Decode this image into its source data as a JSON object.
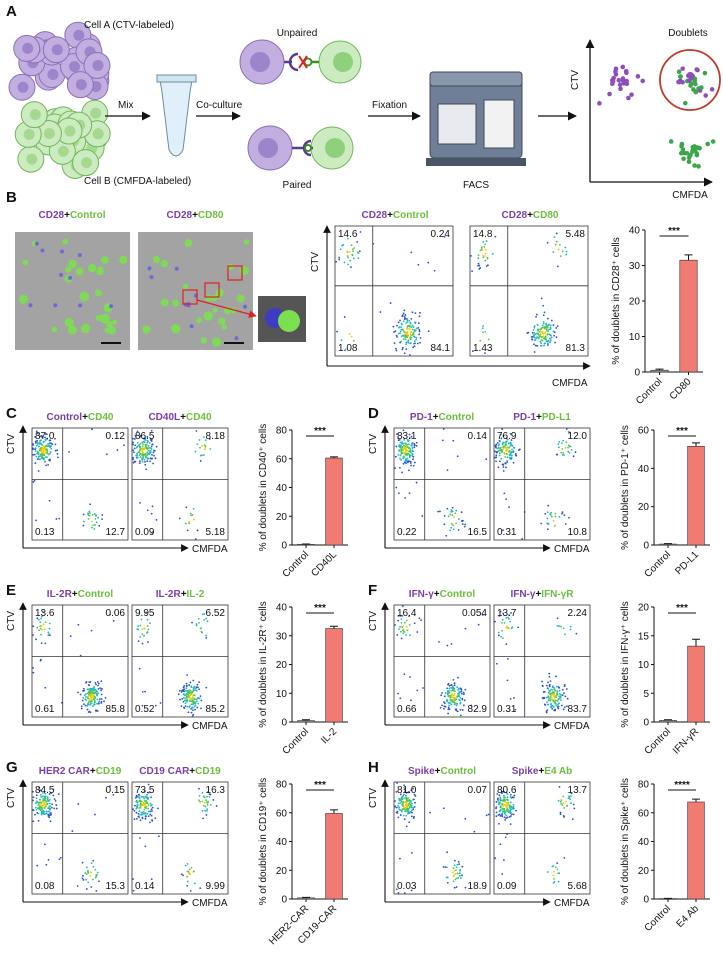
{
  "title_colors": [
    "#7b3fa8",
    "#111111",
    "#6cbf3c"
  ],
  "bar_colors": [
    "#9e9e9e",
    "#f07b72"
  ],
  "panel_a": {
    "label": "A",
    "cell_a": "Cell A (CTV-labeled)",
    "cell_b": "Cell B (CMFDA-labeled)",
    "mix": "Mix",
    "coculture": "Co-culture",
    "unpaired": "Unpaired",
    "paired": "Paired",
    "fixation": "Fixation",
    "facs": "FACS",
    "doublets": "Doublets",
    "y_axis": "CTV",
    "x_axis": "CMFDA"
  },
  "panel_b": {
    "label": "B",
    "micrographs": [
      [
        "CD28",
        "+",
        "Control"
      ],
      [
        "CD28",
        "+",
        "CD80"
      ]
    ],
    "flow": [
      {
        "title": [
          "CD28",
          "+",
          "Control"
        ],
        "quadrants": [
          "14.6",
          "0.24",
          "1.08",
          "84.1"
        ]
      },
      {
        "title": [
          "CD28",
          "+",
          "CD80"
        ],
        "quadrants": [
          "14.8",
          "5.48",
          "1.43",
          "81.3"
        ]
      }
    ],
    "y_axis": "CTV",
    "x_axis": "CMFDA",
    "bar": {
      "type": "bar",
      "ylabel": "% of doublets in CD28⁺ cells",
      "categories": [
        "Control",
        "CD80"
      ],
      "values": [
        0.5,
        31.5
      ],
      "errors": [
        0.3,
        1.5
      ],
      "ylim": [
        0,
        40
      ],
      "yticks": [
        0,
        10,
        20,
        30,
        40
      ],
      "significance": "***"
    }
  },
  "panel_c": {
    "label": "C",
    "flow": [
      {
        "title": [
          "Control",
          "+",
          "CD40"
        ],
        "quadrants": [
          "87.0",
          "0.12",
          "0.13",
          "12.7"
        ]
      },
      {
        "title": [
          "CD40L",
          "+",
          "CD40"
        ],
        "quadrants": [
          "86.5",
          "8.18",
          "0.09",
          "5.18"
        ]
      }
    ],
    "y_axis": "CTV",
    "x_axis": "CMFDA",
    "bar": {
      "type": "bar",
      "ylabel": "% of doublets in CD40⁺ cells",
      "categories": [
        "Control",
        "CD40L"
      ],
      "values": [
        0.5,
        60.5
      ],
      "errors": [
        0.2,
        0.8
      ],
      "ylim": [
        0,
        80
      ],
      "yticks": [
        0,
        20,
        40,
        60,
        80
      ],
      "significance": "***"
    }
  },
  "panel_d": {
    "label": "D",
    "flow": [
      {
        "title": [
          "PD-1",
          "+",
          "Control"
        ],
        "quadrants": [
          "83.1",
          "0.14",
          "0.22",
          "16.5"
        ]
      },
      {
        "title": [
          "PD-1",
          "+",
          "PD-L1"
        ],
        "quadrants": [
          "76.9",
          "12.0",
          "0.31",
          "10.8"
        ]
      }
    ],
    "y_axis": "CTV",
    "x_axis": "CMFDA",
    "bar": {
      "type": "bar",
      "ylabel": "% of doublets in PD-1⁺ cells",
      "categories": [
        "Control",
        "PD-L1"
      ],
      "values": [
        0.5,
        51.5
      ],
      "errors": [
        0.2,
        1.8
      ],
      "ylim": [
        0,
        60
      ],
      "yticks": [
        0,
        20,
        40,
        60
      ],
      "significance": "***"
    }
  },
  "panel_e": {
    "label": "E",
    "flow": [
      {
        "title": [
          "IL-2R",
          "+",
          "Control"
        ],
        "quadrants": [
          "13.6",
          "0.06",
          "0.61",
          "85.8"
        ]
      },
      {
        "title": [
          "IL-2R",
          "+",
          "IL-2"
        ],
        "quadrants": [
          "9.95",
          "6.52",
          "0.52",
          "85.2"
        ]
      }
    ],
    "y_axis": "CTV",
    "x_axis": "CMFDA",
    "bar": {
      "type": "bar",
      "ylabel": "% of doublets in IL-2R⁺ cells",
      "categories": [
        "Control",
        "IL-2"
      ],
      "values": [
        0.5,
        32.5
      ],
      "errors": [
        0.3,
        0.8
      ],
      "ylim": [
        0,
        40
      ],
      "yticks": [
        0,
        10,
        20,
        30,
        40
      ],
      "significance": "***"
    }
  },
  "panel_f": {
    "label": "F",
    "flow": [
      {
        "title": [
          "IFN-γ",
          "+",
          "Control"
        ],
        "quadrants": [
          "16.4",
          "0.054",
          "0.66",
          "82.9"
        ]
      },
      {
        "title": [
          "IFN-γ",
          "+",
          "IFN-γR"
        ],
        "quadrants": [
          "13.7",
          "2.24",
          "0.31",
          "83.7"
        ]
      }
    ],
    "y_axis": "CTV",
    "x_axis": "CMFDA",
    "bar": {
      "type": "bar",
      "ylabel": "% of doublets in IFN-γ⁺ cells",
      "categories": [
        "Control",
        "IFN-γR"
      ],
      "values": [
        0.3,
        13.2
      ],
      "errors": [
        0.1,
        1.2
      ],
      "ylim": [
        0,
        20
      ],
      "yticks": [
        0,
        5,
        10,
        15,
        20
      ],
      "significance": "***"
    }
  },
  "panel_g": {
    "label": "G",
    "flow": [
      {
        "title": [
          "HER2 CAR",
          "+",
          "CD19"
        ],
        "quadrants": [
          "84.5",
          "0.15",
          "0.08",
          "15.3"
        ]
      },
      {
        "title": [
          "CD19 CAR",
          "+",
          "CD19"
        ],
        "quadrants": [
          "73.5",
          "16.3",
          "0.14",
          "9.99"
        ]
      }
    ],
    "y_axis": "CTV",
    "x_axis": "CMFDA",
    "bar": {
      "type": "bar",
      "ylabel": "% of doublets in CD19⁺ cells",
      "categories": [
        "HER2-CAR",
        "CD19-CAR"
      ],
      "values": [
        0.8,
        59.5
      ],
      "errors": [
        0.3,
        2.5
      ],
      "ylim": [
        0,
        80
      ],
      "yticks": [
        0,
        20,
        40,
        60,
        80
      ],
      "significance": "***"
    }
  },
  "panel_h": {
    "label": "H",
    "flow": [
      {
        "title": [
          "Spike",
          "+",
          "Control"
        ],
        "quadrants": [
          "81.0",
          "0.07",
          "0.03",
          "18.9"
        ]
      },
      {
        "title": [
          "Spike",
          "+",
          "E4 Ab"
        ],
        "quadrants": [
          "80.6",
          "13.7",
          "0.09",
          "5.68"
        ]
      }
    ],
    "y_axis": "CTV",
    "x_axis": "CMFDA",
    "bar": {
      "type": "bar",
      "ylabel": "% of doublets in Spike⁺ cells",
      "categories": [
        "Control",
        "E4 Ab"
      ],
      "values": [
        0.3,
        67.5
      ],
      "errors": [
        0.1,
        2.0
      ],
      "ylim": [
        0,
        80
      ],
      "yticks": [
        0,
        20,
        40,
        60,
        80
      ],
      "significance": "****"
    }
  }
}
